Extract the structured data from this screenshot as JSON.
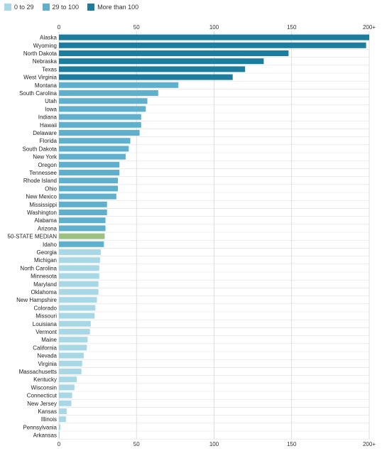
{
  "legend": [
    {
      "label": "0 to 29",
      "color": "#a8d8e6"
    },
    {
      "label": "29 to 100",
      "color": "#5fb0cc"
    },
    {
      "label": "More than 100",
      "color": "#1d7d9f"
    }
  ],
  "chart_data": {
    "type": "bar",
    "orientation": "horizontal",
    "title": "",
    "xlabel": "",
    "ylabel": "",
    "xlim": [
      0,
      200
    ],
    "xticks": [
      0,
      50,
      100,
      150,
      200
    ],
    "xtick_labels": [
      "0",
      "50",
      "100",
      "150",
      "200+"
    ],
    "grid": true,
    "legend_position": "top-left",
    "median_color": "#9dc083",
    "categories": [
      "Alaska",
      "Wyoming",
      "North Dakota",
      "Nebraska",
      "Texas",
      "West Virginia",
      "Montana",
      "South Carolina",
      "Utah",
      "Iowa",
      "Indiana",
      "Hawaii",
      "Delaware",
      "Florida",
      "South Dakota",
      "New York",
      "Oregon",
      "Tennessee",
      "Rhode Island",
      "Ohio",
      "New Mexico",
      "Mississippi",
      "Washington",
      "Alabama",
      "Arizona",
      "50-STATE MEDIAN",
      "Idaho",
      "Georgia",
      "Michigan",
      "North Carolina",
      "Minnesota",
      "Maryland",
      "Oklahoma",
      "New Hampshire",
      "Colorado",
      "Missouri",
      "Louisiana",
      "Vermont",
      "Maine",
      "California",
      "Nevada",
      "Virginia",
      "Massachusetts",
      "Kentucky",
      "Wisconsin",
      "Connecticut",
      "New Jersey",
      "Kansas",
      "Illinois",
      "Pennsylvania",
      "Arkansas"
    ],
    "values": [
      200,
      198,
      148,
      132,
      120,
      112,
      77,
      64,
      57,
      56,
      53,
      53,
      52,
      46,
      45,
      43,
      39,
      39,
      38,
      38,
      37,
      31,
      31,
      30,
      30,
      29.5,
      29,
      27,
      26.5,
      26,
      26,
      25.5,
      25.5,
      24.5,
      23.5,
      23,
      20.5,
      20,
      18.5,
      18,
      16,
      15,
      14.5,
      11.5,
      10,
      8.5,
      8,
      5,
      4.5,
      1,
      0.5
    ]
  }
}
